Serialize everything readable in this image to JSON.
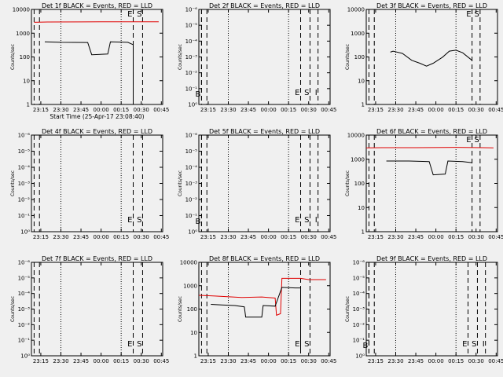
{
  "chart_data": [
    {
      "type": "line",
      "title": "Det 1f BLACK = Events, RED = LLD",
      "xlabel": "Start Time (25-Apr-17 23:08:40)",
      "ylabel": "Counts/sec",
      "yscale": "log",
      "x_tick_labels": [
        "23:15",
        "23:30",
        "23:45",
        "00:00",
        "00:15",
        "00:30",
        "00:45"
      ],
      "y_tick_labels": [
        "1",
        "10",
        "100",
        "1000",
        "10000"
      ],
      "markers": [
        {
          "label": "E",
          "time": "00:24"
        },
        {
          "label": "S",
          "time": "00:31"
        }
      ],
      "series": [
        {
          "name": "LLD",
          "color": "#e00000",
          "points": [
            [
              "23:10",
              3500
            ],
            [
              "23:20",
              3600
            ],
            [
              "23:45",
              3650
            ],
            [
              "00:15",
              3700
            ],
            [
              "00:35",
              3700
            ],
            [
              "00:43",
              3700
            ]
          ]
        },
        {
          "name": "Events",
          "color": "#000000",
          "points": [
            [
              "23:18",
              500
            ],
            [
              "23:30",
              480
            ],
            [
              "23:50",
              470
            ],
            [
              "23:53",
              140
            ],
            [
              "00:05",
              150
            ],
            [
              "00:07",
              500
            ],
            [
              "00:20",
              480
            ],
            [
              "00:24",
              380
            ],
            [
              "00:24",
              1
            ]
          ]
        }
      ]
    },
    {
      "type": "line",
      "title": "Det 2f BLACK = Events, RED = LLD",
      "xlabel": "",
      "ylabel": "Counts/sec",
      "yscale": "log",
      "x_tick_labels": [
        "23:15",
        "23:30",
        "23:45",
        "00:00",
        "00:15",
        "00:30",
        "00:45"
      ],
      "y_tick_labels": [
        "10⁰",
        "10⁻¹",
        "10⁻²",
        "10⁻³",
        "10⁻⁴",
        "10⁻⁵",
        "10⁻⁶"
      ],
      "markers": [
        {
          "label": "B",
          "time": "23:10"
        },
        {
          "label": "E",
          "time": "00:24"
        },
        {
          "label": "S",
          "time": "00:31"
        },
        {
          "label": "I",
          "time": "00:37"
        }
      ],
      "series": []
    },
    {
      "type": "line",
      "title": "Det 3f BLACK = Events, RED = LLD",
      "xlabel": "",
      "ylabel": "Counts/sec",
      "yscale": "log",
      "x_tick_labels": [
        "23:15",
        "23:30",
        "23:45",
        "00:00",
        "00:15",
        "00:30",
        "00:45"
      ],
      "y_tick_labels": [
        "1",
        "10",
        "100",
        "1000",
        "10000"
      ],
      "markers": [
        {
          "label": "E",
          "time": "00:27"
        },
        {
          "label": "S",
          "time": "00:33"
        }
      ],
      "series": [
        {
          "name": "Events",
          "color": "#000000",
          "points": [
            [
              "23:26",
              180
            ],
            [
              "23:28",
              200
            ],
            [
              "23:35",
              160
            ],
            [
              "23:42",
              80
            ],
            [
              "23:48",
              60
            ],
            [
              "23:53",
              45
            ],
            [
              "23:58",
              60
            ],
            [
              "00:05",
              110
            ],
            [
              "00:10",
              200
            ],
            [
              "00:15",
              220
            ],
            [
              "00:20",
              170
            ],
            [
              "00:27",
              80
            ]
          ]
        }
      ]
    },
    {
      "type": "line",
      "title": "Det 4f BLACK = Events, RED = LLD",
      "xlabel": "",
      "ylabel": "Counts/sec",
      "yscale": "log",
      "x_tick_labels": [
        "23:15",
        "23:30",
        "23:45",
        "00:00",
        "00:15",
        "00:30",
        "00:45"
      ],
      "y_tick_labels": [
        "10⁰",
        "10⁻¹",
        "10⁻²",
        "10⁻³",
        "10⁻⁴",
        "10⁻⁵",
        "10⁻⁶"
      ],
      "markers": [
        {
          "label": "E",
          "time": "00:24"
        },
        {
          "label": "S",
          "time": "00:31"
        }
      ],
      "series": []
    },
    {
      "type": "line",
      "title": "Det 5f BLACK = Events, RED = LLD",
      "xlabel": "",
      "ylabel": "Counts/sec",
      "yscale": "log",
      "x_tick_labels": [
        "23:15",
        "23:30",
        "23:45",
        "00:00",
        "00:15",
        "00:30",
        "00:45"
      ],
      "y_tick_labels": [
        "10⁰",
        "10⁻¹",
        "10⁻²",
        "10⁻³",
        "10⁻⁴",
        "10⁻⁵",
        "10⁻⁶"
      ],
      "markers": [
        {
          "label": "B",
          "time": "23:10"
        },
        {
          "label": "E",
          "time": "00:24"
        },
        {
          "label": "S",
          "time": "00:31"
        },
        {
          "label": "I",
          "time": "00:37"
        }
      ],
      "series": []
    },
    {
      "type": "line",
      "title": "Det 6f BLACK = Events, RED = LLD",
      "xlabel": "",
      "ylabel": "Counts/sec",
      "yscale": "log",
      "x_tick_labels": [
        "23:15",
        "23:30",
        "23:45",
        "00:00",
        "00:15",
        "00:30",
        "00:45"
      ],
      "y_tick_labels": [
        "1",
        "10",
        "100",
        "1000",
        "10000"
      ],
      "markers": [
        {
          "label": "E",
          "time": "00:27"
        },
        {
          "label": "S",
          "time": "00:33"
        }
      ],
      "series": [
        {
          "name": "LLD",
          "color": "#e00000",
          "points": [
            [
              "23:08",
              3600
            ],
            [
              "23:20",
              3700
            ],
            [
              "23:45",
              3700
            ],
            [
              "00:15",
              3800
            ],
            [
              "00:35",
              3700
            ],
            [
              "00:43",
              3600
            ]
          ]
        },
        {
          "name": "Events",
          "color": "#000000",
          "points": [
            [
              "23:23",
              1000
            ],
            [
              "23:40",
              1000
            ],
            [
              "23:55",
              950
            ],
            [
              "23:58",
              260
            ],
            [
              "00:07",
              280
            ],
            [
              "00:09",
              1000
            ],
            [
              "00:20",
              950
            ],
            [
              "00:27",
              850
            ]
          ]
        }
      ]
    },
    {
      "type": "line",
      "title": "Det 7f BLACK = Events, RED = LLD",
      "xlabel": "",
      "ylabel": "Counts/sec",
      "yscale": "log",
      "x_tick_labels": [
        "23:15",
        "23:30",
        "23:45",
        "00:00",
        "00:15",
        "00:30",
        "00:45"
      ],
      "y_tick_labels": [
        "10⁰",
        "10⁻¹",
        "10⁻²",
        "10⁻³",
        "10⁻⁴",
        "10⁻⁵",
        "10⁻⁶"
      ],
      "markers": [
        {
          "label": "E",
          "time": "00:24"
        },
        {
          "label": "S",
          "time": "00:31"
        }
      ],
      "series": []
    },
    {
      "type": "line",
      "title": "Det 8f BLACK = Events, RED = LLD",
      "xlabel": "",
      "ylabel": "Counts/sec",
      "yscale": "log",
      "x_tick_labels": [
        "23:15",
        "23:30",
        "23:45",
        "00:00",
        "00:15",
        "00:30",
        "00:45"
      ],
      "y_tick_labels": [
        "1",
        "10",
        "100",
        "1000",
        "10000"
      ],
      "markers": [
        {
          "label": "E",
          "time": "00:24"
        },
        {
          "label": "S",
          "time": "00:31"
        }
      ],
      "series": [
        {
          "name": "LLD",
          "color": "#e00000",
          "points": [
            [
              "23:08",
              450
            ],
            [
              "23:20",
              420
            ],
            [
              "23:40",
              360
            ],
            [
              "23:55",
              380
            ],
            [
              "00:05",
              340
            ],
            [
              "00:06",
              60
            ],
            [
              "00:09",
              70
            ],
            [
              "00:10",
              2500
            ],
            [
              "00:24",
              2500
            ],
            [
              "00:30",
              2200
            ],
            [
              "00:43",
              2200
            ]
          ]
        },
        {
          "name": "Events",
          "color": "#000000",
          "points": [
            [
              "23:17",
              180
            ],
            [
              "23:25",
              170
            ],
            [
              "23:35",
              160
            ],
            [
              "23:42",
              140
            ],
            [
              "23:43",
              50
            ],
            [
              "23:55",
              50
            ],
            [
              "23:56",
              160
            ],
            [
              "00:05",
              150
            ],
            [
              "00:10",
              1000
            ],
            [
              "00:20",
              950
            ],
            [
              "00:24",
              950
            ],
            [
              "00:24",
              2
            ]
          ]
        }
      ]
    },
    {
      "type": "line",
      "title": "Det 9f BLACK = Events, RED = LLD",
      "xlabel": "",
      "ylabel": "Counts/sec",
      "yscale": "log",
      "x_tick_labels": [
        "23:15",
        "23:30",
        "23:45",
        "00:00",
        "00:15",
        "00:30",
        "00:45"
      ],
      "y_tick_labels": [
        "10⁰",
        "10⁻¹",
        "10⁻²",
        "10⁻³",
        "10⁻⁴",
        "10⁻⁵",
        "10⁻⁶"
      ],
      "markers": [
        {
          "label": "B",
          "time": "23:10"
        },
        {
          "label": "E",
          "time": "00:24"
        },
        {
          "label": "S",
          "time": "00:31"
        },
        {
          "label": "I",
          "time": "00:37"
        }
      ],
      "series": []
    }
  ]
}
